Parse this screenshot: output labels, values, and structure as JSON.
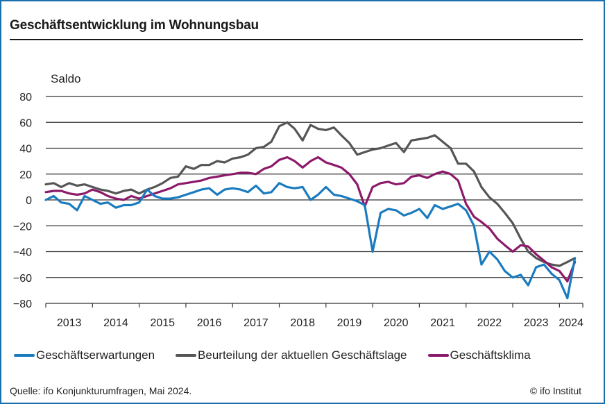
{
  "header": {
    "title": "Geschäftsentwicklung im Wohnungsbau"
  },
  "footer": {
    "source": "Quelle: ifo Konjunkturumfragen, Mai 2024.",
    "copyright": "© ifo Institut"
  },
  "chart_data": {
    "type": "line",
    "title": "Geschäftsentwicklung im Wohnungsbau",
    "xlabel": "",
    "ylabel": "Saldo",
    "ylim": [
      -80,
      80
    ],
    "yticks": [
      80,
      60,
      40,
      20,
      0,
      -20,
      -40,
      -60,
      -80
    ],
    "xticks": [
      "2013",
      "2014",
      "2015",
      "2016",
      "2017",
      "2018",
      "2019",
      "2020",
      "2021",
      "2022",
      "2023",
      "2024"
    ],
    "xrange": [
      2013.0,
      2024.5
    ],
    "grid": "horizontal",
    "legend_position": "bottom",
    "x": [
      2013.0,
      2013.17,
      2013.33,
      2013.5,
      2013.67,
      2013.83,
      2014.0,
      2014.17,
      2014.33,
      2014.5,
      2014.67,
      2014.83,
      2015.0,
      2015.17,
      2015.33,
      2015.5,
      2015.67,
      2015.83,
      2016.0,
      2016.17,
      2016.33,
      2016.5,
      2016.67,
      2016.83,
      2017.0,
      2017.17,
      2017.33,
      2017.5,
      2017.67,
      2017.83,
      2018.0,
      2018.17,
      2018.33,
      2018.5,
      2018.67,
      2018.83,
      2019.0,
      2019.17,
      2019.33,
      2019.5,
      2019.67,
      2019.83,
      2020.0,
      2020.17,
      2020.33,
      2020.5,
      2020.67,
      2020.83,
      2021.0,
      2021.17,
      2021.33,
      2021.5,
      2021.67,
      2021.83,
      2022.0,
      2022.17,
      2022.33,
      2022.5,
      2022.67,
      2022.83,
      2023.0,
      2023.17,
      2023.33,
      2023.5,
      2023.67,
      2023.83,
      2024.0,
      2024.17,
      2024.33
    ],
    "series": [
      {
        "name": "Geschäftserwartungen",
        "color": "#1a7bbf",
        "values": [
          0,
          3,
          -2,
          -3,
          -8,
          3,
          0,
          -3,
          -2,
          -6,
          -4,
          -4,
          -2,
          8,
          3,
          1,
          1,
          2,
          4,
          6,
          8,
          9,
          4,
          8,
          9,
          8,
          6,
          11,
          5,
          6,
          13,
          10,
          9,
          10,
          0,
          4,
          10,
          4,
          3,
          1,
          -1,
          -4,
          -40,
          -10,
          -7,
          -8,
          -12,
          -10,
          -7,
          -14,
          -4,
          -7,
          -5,
          -3,
          -8,
          -20,
          -50,
          -40,
          -46,
          -55,
          -60,
          -58,
          -66,
          -52,
          -50,
          -57,
          -62,
          -76,
          -45
        ]
      },
      {
        "name": "Beurteilung der aktuellen Geschäftslage",
        "color": "#555555",
        "values": [
          12,
          13,
          10,
          13,
          11,
          12,
          10,
          8,
          7,
          5,
          7,
          8,
          5,
          8,
          10,
          13,
          17,
          18,
          26,
          24,
          27,
          27,
          30,
          29,
          32,
          33,
          35,
          40,
          41,
          45,
          57,
          60,
          55,
          46,
          58,
          55,
          54,
          56,
          50,
          44,
          35,
          37,
          39,
          40,
          42,
          44,
          37,
          46,
          47,
          48,
          50,
          45,
          40,
          28,
          28,
          22,
          10,
          2,
          -3,
          -10,
          -18,
          -30,
          -40,
          -45,
          -48,
          -50,
          -51,
          -48,
          -45
        ]
      },
      {
        "name": "Geschäftsklima",
        "color": "#8c1a6a",
        "values": [
          6,
          7,
          7,
          5,
          4,
          5,
          8,
          6,
          3,
          1,
          0,
          3,
          1,
          3,
          5,
          7,
          9,
          12,
          13,
          14,
          15,
          17,
          18,
          19,
          20,
          21,
          21,
          20,
          24,
          26,
          31,
          33,
          30,
          25,
          30,
          33,
          29,
          27,
          25,
          20,
          12,
          -5,
          10,
          13,
          14,
          12,
          13,
          18,
          19,
          17,
          20,
          22,
          20,
          15,
          -3,
          -13,
          -17,
          -22,
          -30,
          -35,
          -40,
          -35,
          -36,
          -42,
          -47,
          -52,
          -55,
          -63,
          -48
        ]
      }
    ]
  }
}
